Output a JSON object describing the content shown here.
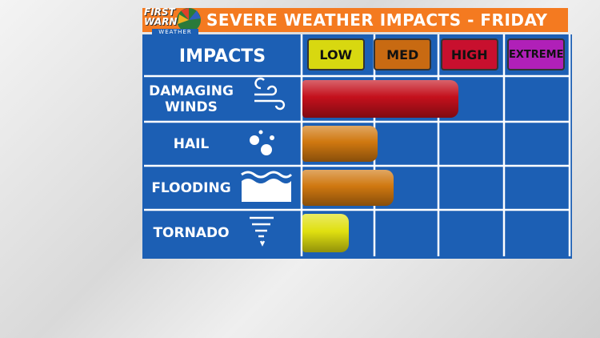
{
  "chart_data": {
    "type": "bar",
    "orientation": "horizontal",
    "title": "SEVERE WEATHER IMPACTS - FRIDAY",
    "logo_text": "FIRST WARN",
    "logo_subtext": "WEATHER",
    "y_header": "IMPACTS",
    "categories": [
      "DAMAGING WINDS",
      "HAIL",
      "FLOODING",
      "TORNADO"
    ],
    "values": [
      2.33,
      1.12,
      1.37,
      0.69
    ],
    "colors": [
      "#c4101c",
      "#d07810",
      "#d07810",
      "#e0e010"
    ],
    "xlim": [
      0,
      4
    ],
    "xticks": [
      {
        "value": 0.5,
        "label": "LOW"
      },
      {
        "value": 1.5,
        "label": "MED"
      },
      {
        "value": 2.5,
        "label": "HIGH"
      },
      {
        "value": 3.5,
        "label": "EXTREME"
      }
    ],
    "tick_colors": [
      "#d8d810",
      "#c86a12",
      "#c8102e",
      "#b020b8"
    ]
  }
}
